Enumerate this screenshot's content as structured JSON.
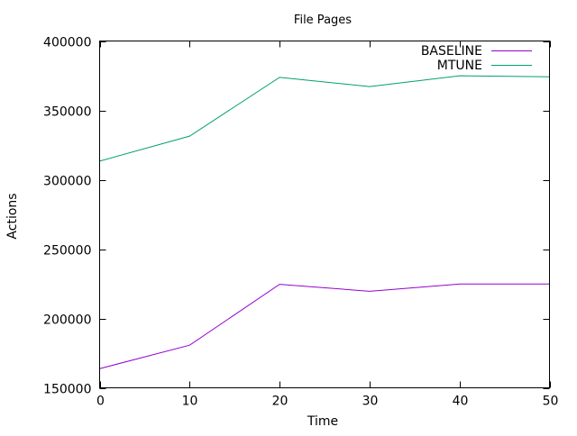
{
  "chart_data": {
    "type": "line",
    "title": "File Pages",
    "xlabel": "Time",
    "ylabel": "Actions",
    "xlim": [
      0,
      50
    ],
    "ylim": [
      150000,
      400000
    ],
    "xticks": [
      0,
      10,
      20,
      30,
      40,
      50
    ],
    "yticks": [
      150000,
      200000,
      250000,
      300000,
      350000,
      400000
    ],
    "grid": false,
    "legend_position": "top-right",
    "x": [
      0,
      10,
      20,
      30,
      40,
      50
    ],
    "series": [
      {
        "name": "BASELINE",
        "color": "#9400d3",
        "values": [
          163800,
          180700,
          224600,
          219600,
          224800,
          224800
        ]
      },
      {
        "name": "MTUNE",
        "color": "#009e73",
        "values": [
          313400,
          331400,
          373800,
          367100,
          374900,
          374200
        ]
      }
    ]
  }
}
